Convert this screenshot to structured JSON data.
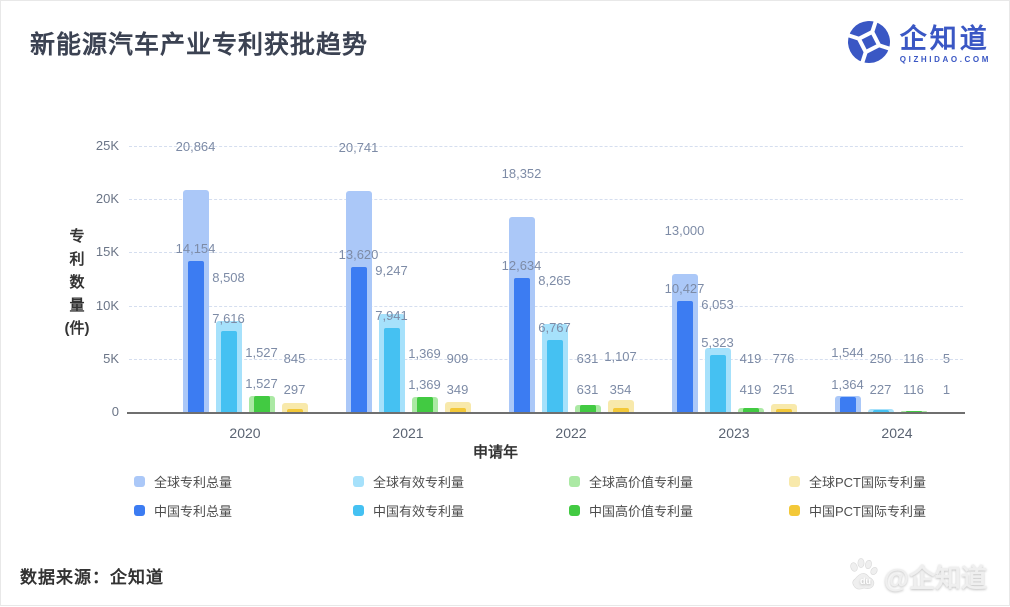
{
  "header": {
    "title": "新能源汽车产业专利获批趋势",
    "logo_text": "企知道",
    "logo_sub": "QIZHIDAO.COM",
    "logo_color": "#3a57c4"
  },
  "footer": {
    "source": "数据来源：企知道",
    "watermark_text": "@企知道",
    "watermark_icon": "baidu-paw"
  },
  "chart_data": {
    "type": "bar",
    "title": "新能源汽车产业专利获批趋势",
    "xlabel": "申请年",
    "ylabel": "专利数量(件)",
    "ylim": [
      0,
      25000
    ],
    "ytick_values": [
      0,
      5000,
      10000,
      15000,
      20000,
      25000
    ],
    "ytick_labels": [
      "0",
      "5K",
      "10K",
      "15K",
      "20K",
      "25K"
    ],
    "grid": "dashed-horizontal",
    "legend_position": "bottom",
    "categories": [
      "2020",
      "2021",
      "2022",
      "2023",
      "2024"
    ],
    "series": [
      {
        "name": "全球专利总量",
        "scope": "global",
        "color": "#abc8f8",
        "values": [
          20864,
          20741,
          18352,
          13000,
          1544
        ]
      },
      {
        "name": "中国专利总量",
        "scope": "china",
        "color": "#3c7cf2",
        "values": [
          14154,
          13620,
          12634,
          10427,
          1364
        ]
      },
      {
        "name": "全球有效专利量",
        "scope": "global",
        "color": "#a6e1fb",
        "values": [
          8508,
          9247,
          8265,
          6053,
          250
        ]
      },
      {
        "name": "中国有效专利量",
        "scope": "china",
        "color": "#45c1f2",
        "values": [
          7616,
          7941,
          6767,
          5323,
          227
        ]
      },
      {
        "name": "全球高价值专利量",
        "scope": "global",
        "color": "#abe9a4",
        "values": [
          1527,
          1369,
          631,
          419,
          116
        ]
      },
      {
        "name": "中国高价值专利量",
        "scope": "china",
        "color": "#42ca42",
        "values": [
          1527,
          1369,
          631,
          419,
          116
        ]
      },
      {
        "name": "全球PCT国际专利量",
        "scope": "global",
        "color": "#f8e9ab",
        "values": [
          845,
          909,
          1107,
          776,
          5
        ]
      },
      {
        "name": "中国PCT国际专利量",
        "scope": "china",
        "color": "#f3c838",
        "values": [
          297,
          349,
          354,
          251,
          1
        ]
      }
    ]
  }
}
